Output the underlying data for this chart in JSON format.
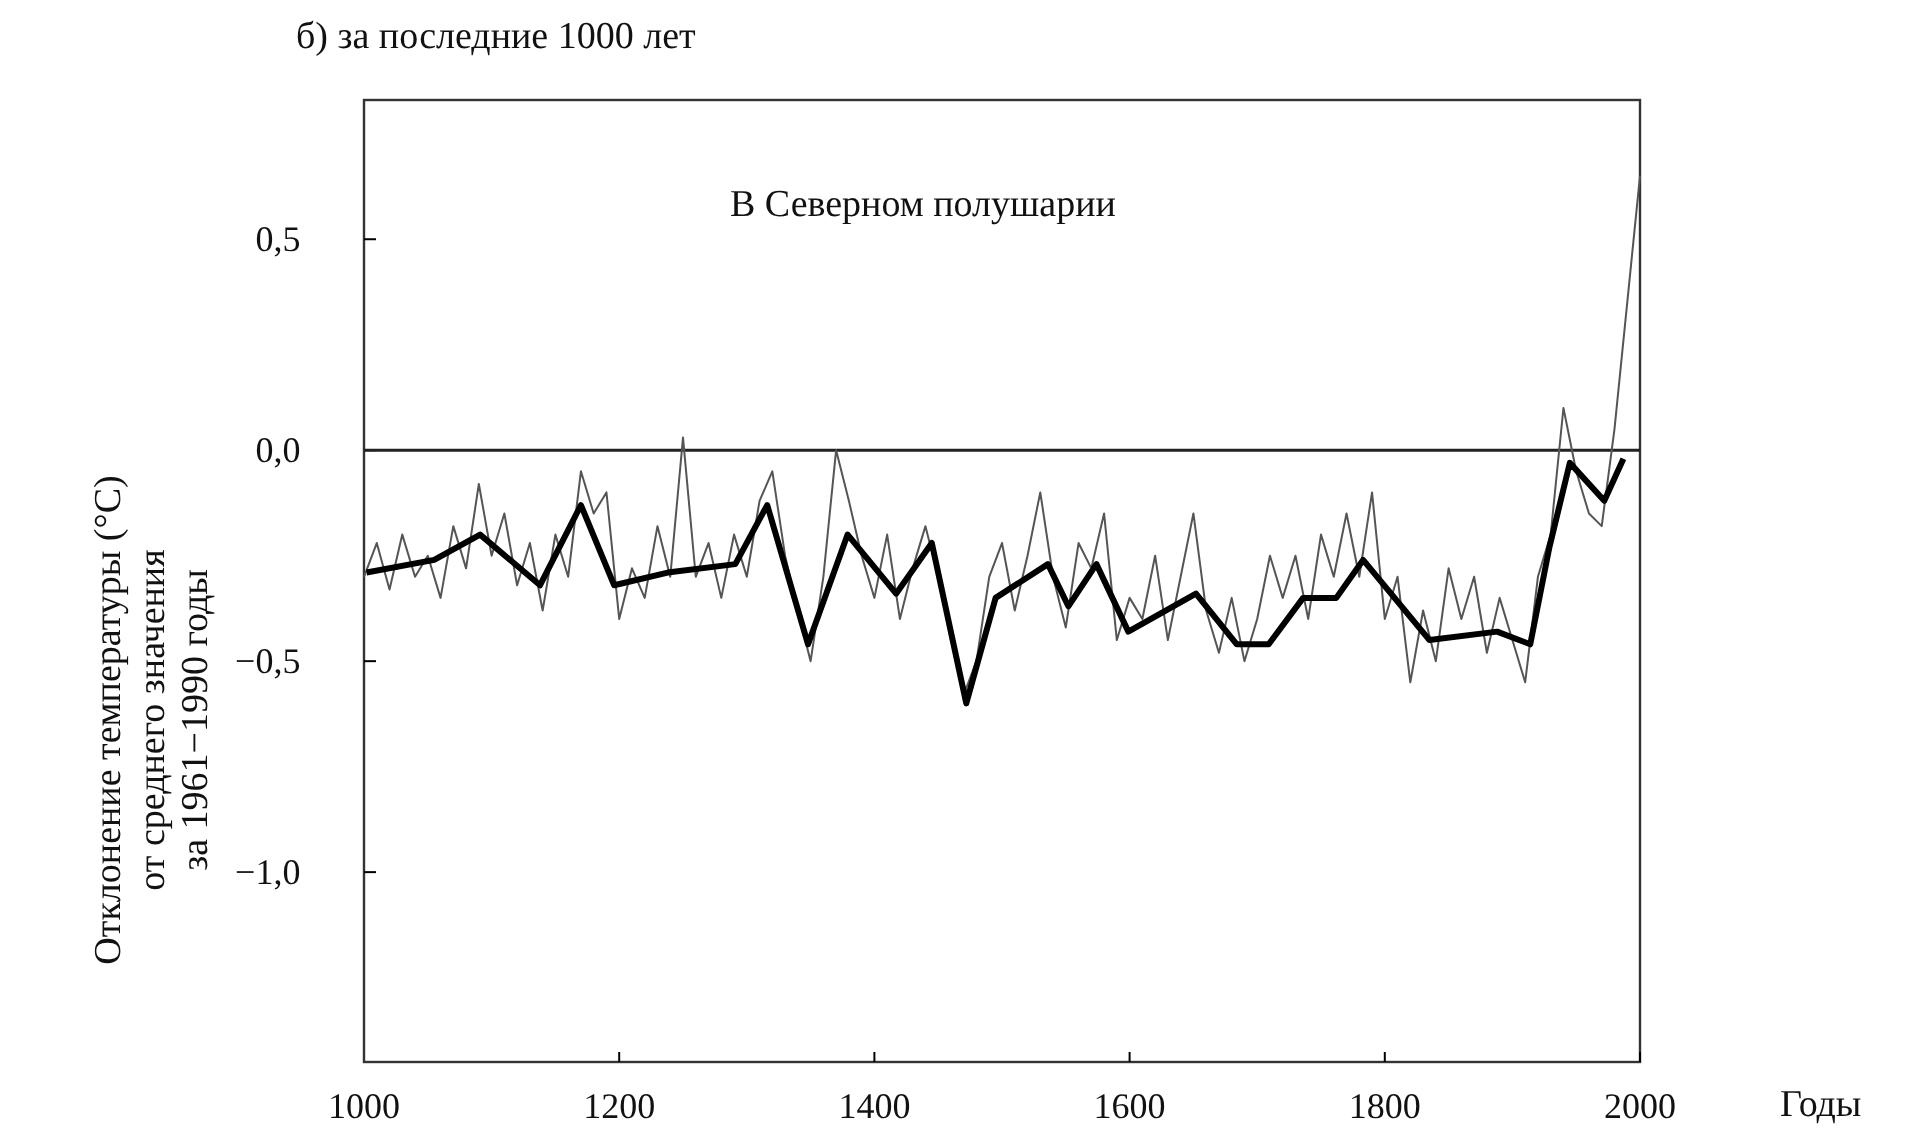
{
  "chart_data": {
    "type": "line",
    "title": "б) за последние 1000 лет",
    "xlabel": "Годы",
    "ylabel": "Отклонение температуры (°C)\nот среднего значения\nза 1961−1990 годы",
    "annotations": [
      "В Северном полушарии"
    ],
    "xlim": [
      1000,
      2000
    ],
    "xticks": [
      1000,
      1200,
      1400,
      1600,
      1800,
      2000
    ],
    "ylim": [
      -1.45,
      0.83
    ],
    "yticks": [
      {
        "value": 0.5,
        "label": "0,5"
      },
      {
        "value": 0,
        "label": "0,0"
      },
      {
        "value": -0.5,
        "label": "−0,5"
      },
      {
        "value": -1,
        "label": "−1,0"
      }
    ],
    "grid": false,
    "ref_lines": [
      {
        "axis": "y",
        "value": 0,
        "color": "#222222"
      }
    ],
    "series": [
      {
        "color": "#555555",
        "x": [
          1000,
          1010,
          1020,
          1030,
          1040,
          1050,
          1060,
          1070,
          1080,
          1090,
          1100,
          1110,
          1120,
          1130,
          1140,
          1150,
          1160,
          1170,
          1180,
          1190,
          1200,
          1210,
          1220,
          1230,
          1240,
          1250,
          1260,
          1270,
          1280,
          1290,
          1300,
          1310,
          1320,
          1330,
          1340,
          1350,
          1360,
          1370,
          1380,
          1390,
          1400,
          1410,
          1420,
          1430,
          1440,
          1450,
          1460,
          1470,
          1480,
          1490,
          1500,
          1510,
          1520,
          1530,
          1540,
          1550,
          1560,
          1570,
          1580,
          1590,
          1600,
          1610,
          1620,
          1630,
          1640,
          1650,
          1660,
          1670,
          1680,
          1690,
          1700,
          1710,
          1720,
          1730,
          1740,
          1750,
          1760,
          1770,
          1780,
          1790,
          1800,
          1810,
          1820,
          1830,
          1840,
          1850,
          1860,
          1870,
          1880,
          1890,
          1900,
          1910,
          1920,
          1930,
          1940,
          1950,
          1960,
          1970,
          1980,
          1990,
          2000
        ],
        "values": [
          -0.3,
          -0.22,
          -0.33,
          -0.2,
          -0.3,
          -0.25,
          -0.35,
          -0.18,
          -0.28,
          -0.08,
          -0.25,
          -0.15,
          -0.32,
          -0.22,
          -0.38,
          -0.2,
          -0.3,
          -0.05,
          -0.15,
          -0.1,
          -0.4,
          -0.28,
          -0.35,
          -0.18,
          -0.3,
          0.03,
          -0.3,
          -0.22,
          -0.35,
          -0.2,
          -0.3,
          -0.12,
          -0.05,
          -0.25,
          -0.38,
          -0.5,
          -0.3,
          0.0,
          -0.12,
          -0.25,
          -0.35,
          -0.2,
          -0.4,
          -0.28,
          -0.18,
          -0.3,
          -0.45,
          -0.58,
          -0.5,
          -0.3,
          -0.22,
          -0.38,
          -0.25,
          -0.1,
          -0.3,
          -0.42,
          -0.22,
          -0.28,
          -0.15,
          -0.45,
          -0.35,
          -0.4,
          -0.25,
          -0.45,
          -0.3,
          -0.15,
          -0.38,
          -0.48,
          -0.35,
          -0.5,
          -0.4,
          -0.25,
          -0.35,
          -0.25,
          -0.4,
          -0.2,
          -0.3,
          -0.15,
          -0.3,
          -0.1,
          -0.4,
          -0.3,
          -0.55,
          -0.38,
          -0.5,
          -0.28,
          -0.4,
          -0.3,
          -0.48,
          -0.35,
          -0.45,
          -0.55,
          -0.3,
          -0.2,
          0.1,
          -0.05,
          -0.15,
          -0.18,
          0.05,
          0.35,
          0.65
        ]
      },
      {
        "color": "#000000",
        "x": [
          1002,
          1055,
          1091,
          1138,
          1170,
          1196,
          1238,
          1291,
          1316,
          1348,
          1379,
          1417,
          1445,
          1472,
          1495,
          1536,
          1552,
          1574,
          1599,
          1652,
          1684,
          1709,
          1736,
          1762,
          1783,
          1835,
          1888,
          1914,
          1929,
          1945,
          1972,
          1987
        ],
        "values": [
          -0.29,
          -0.26,
          -0.2,
          -0.32,
          -0.13,
          -0.32,
          -0.29,
          -0.27,
          -0.13,
          -0.46,
          -0.2,
          -0.34,
          -0.22,
          -0.6,
          -0.35,
          -0.27,
          -0.37,
          -0.27,
          -0.43,
          -0.34,
          -0.46,
          -0.46,
          -0.35,
          -0.35,
          -0.26,
          -0.45,
          -0.43,
          -0.46,
          -0.23,
          -0.03,
          -0.12,
          -0.02
        ]
      }
    ]
  }
}
